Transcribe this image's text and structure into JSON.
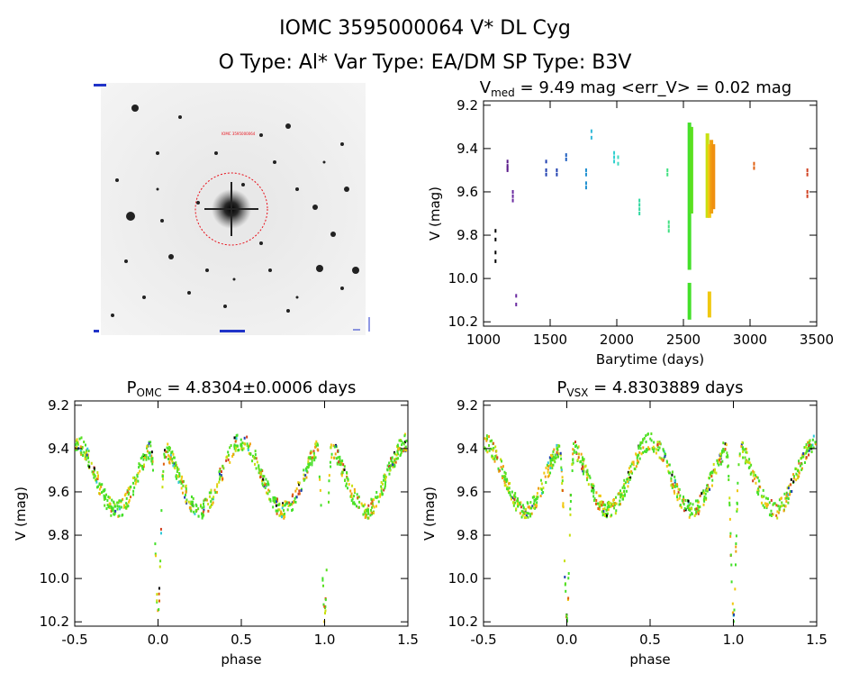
{
  "header": {
    "title": "IOMC 3595000064   V* DL Cyg",
    "subtitle": "O Type: Al*  Var Type: EA/DM  SP Type: B3V"
  },
  "star_image": {
    "marker_label": "IOMC 3595000064"
  },
  "colors": {
    "axes": "#000000",
    "image_marker": "#e8101a",
    "image_labels": "#2033c8"
  },
  "chart_data": [
    {
      "type": "scatter",
      "title": "V",
      "title_sub": "med",
      "title_rest": " = 9.49 mag <err_V> = 0.02 mag",
      "xlabel": "Barytime (days)",
      "ylabel": "V (mag)",
      "xlim": [
        1000,
        3500
      ],
      "ylim": [
        10.22,
        9.18
      ],
      "xticks": [
        1000,
        1500,
        2000,
        2500,
        3000,
        3500
      ],
      "yticks": [
        9.2,
        9.4,
        9.6,
        9.8,
        10.0,
        10.2
      ],
      "clusters": [
        {
          "x": 1090,
          "y": [
            9.78,
            9.82,
            9.88,
            9.92
          ],
          "color": "#000000"
        },
        {
          "x": 1180,
          "y": [
            9.46,
            9.48,
            9.49,
            9.5
          ],
          "color": "#5a1a8a"
        },
        {
          "x": 1220,
          "y": [
            9.6,
            9.62,
            9.64
          ],
          "color": "#6a2aa0"
        },
        {
          "x": 1245,
          "y": [
            10.08,
            10.12
          ],
          "color": "#6a2aa0"
        },
        {
          "x": 1470,
          "y": [
            9.46,
            9.5,
            9.52
          ],
          "color": "#2040b0"
        },
        {
          "x": 1550,
          "y": [
            9.5,
            9.52
          ],
          "color": "#2040b0"
        },
        {
          "x": 1620,
          "y": [
            9.43,
            9.45
          ],
          "color": "#2060c0"
        },
        {
          "x": 1770,
          "y": [
            9.5,
            9.52,
            9.56,
            9.58
          ],
          "color": "#2090d0"
        },
        {
          "x": 1810,
          "y": [
            9.32,
            9.35
          ],
          "color": "#30b8d8"
        },
        {
          "x": 1980,
          "y": [
            9.42,
            9.44,
            9.46
          ],
          "color": "#30d0d0"
        },
        {
          "x": 2010,
          "y": [
            9.44,
            9.47
          ],
          "color": "#40d8c0"
        },
        {
          "x": 2170,
          "y": [
            9.64,
            9.66,
            9.68,
            9.7
          ],
          "color": "#30d8a0"
        },
        {
          "x": 2380,
          "y": [
            9.5,
            9.52
          ],
          "color": "#40e080"
        },
        {
          "x": 2390,
          "y": [
            9.74,
            9.76,
            9.78
          ],
          "color": "#40e080"
        }
      ],
      "bands": [
        {
          "x": 2545,
          "y0": 9.28,
          "y1": 9.96,
          "color": "#44e02a"
        },
        {
          "x": 2545,
          "y0": 10.02,
          "y1": 10.19,
          "color": "#44e02a"
        },
        {
          "x": 2560,
          "y0": 9.3,
          "y1": 9.7,
          "color": "#5ae020"
        },
        {
          "x": 2680,
          "y0": 9.33,
          "y1": 9.72,
          "color": "#c8e010"
        },
        {
          "x": 2695,
          "y0": 9.38,
          "y1": 9.72,
          "color": "#f0c810"
        },
        {
          "x": 2710,
          "y0": 9.36,
          "y1": 9.7,
          "color": "#f0a010"
        },
        {
          "x": 2725,
          "y0": 9.38,
          "y1": 9.68,
          "color": "#f09010"
        },
        {
          "x": 2695,
          "y0": 10.06,
          "y1": 10.18,
          "color": "#f0c810"
        }
      ],
      "late": [
        {
          "x": 3030,
          "y": [
            9.47,
            9.49
          ],
          "color": "#e06010"
        },
        {
          "x": 3430,
          "y": [
            9.5,
            9.52,
            9.6,
            9.62
          ],
          "color": "#d04020"
        }
      ]
    },
    {
      "type": "scatter",
      "title": "P",
      "title_sub": "OMC",
      "title_rest": " = 4.8304±0.0006 days",
      "xlabel": "phase",
      "ylabel": "V (mag)",
      "xlim": [
        -0.5,
        1.5
      ],
      "ylim": [
        10.22,
        9.18
      ],
      "xticks": [
        -0.5,
        0.0,
        0.5,
        1.0,
        1.5
      ],
      "yticks": [
        9.2,
        9.4,
        9.6,
        9.8,
        10.0,
        10.2
      ],
      "phase_shift": 0
    },
    {
      "type": "scatter",
      "title": "P",
      "title_sub": "VSX",
      "title_rest": " = 4.8303889 days",
      "xlabel": "phase",
      "ylabel": "V (mag)",
      "xlim": [
        -0.5,
        1.5
      ],
      "ylim": [
        10.22,
        9.18
      ],
      "xticks": [
        -0.5,
        0.0,
        0.5,
        1.0,
        1.5
      ],
      "yticks": [
        9.2,
        9.4,
        9.6,
        9.8,
        10.0,
        10.2
      ],
      "phase_shift": 0.035
    }
  ]
}
